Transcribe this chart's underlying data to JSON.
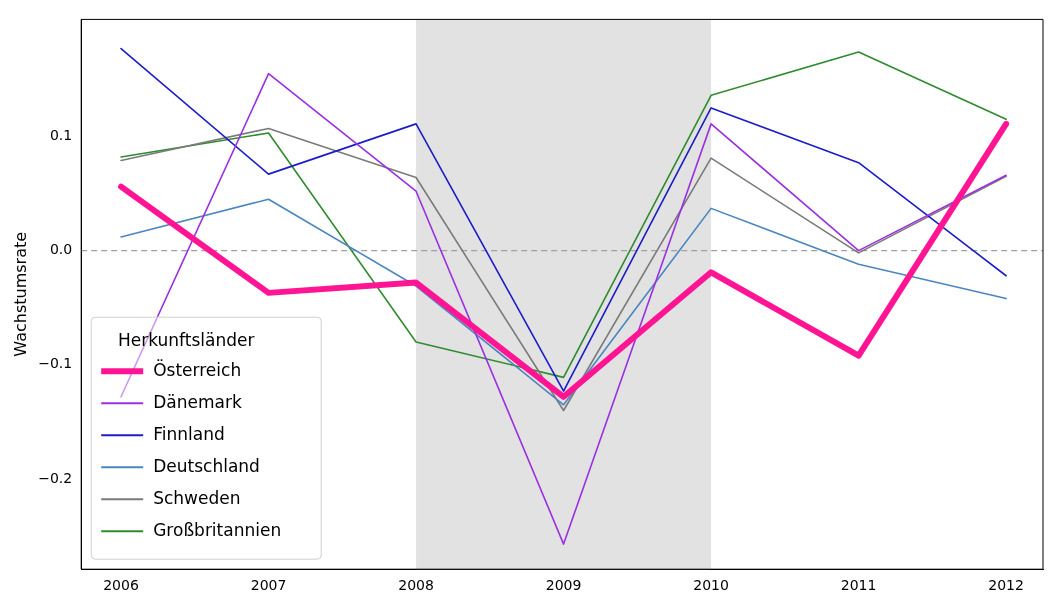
{
  "chart_data": {
    "type": "line",
    "ylabel": "Wachstumsrate",
    "legend_title": "Herkunftsländer",
    "legend": "bottom left",
    "grid": false,
    "marker": "none",
    "line_style": "solid",
    "x": [
      2006,
      2007,
      2008,
      2009,
      2010,
      2011,
      2012
    ],
    "xlim": [
      2005.73,
      2012.25
    ],
    "xticks": [
      2006,
      2007,
      2008,
      2009,
      2010,
      2011,
      2012
    ],
    "ylim": [
      -0.279,
      0.2025
    ],
    "yticks": [
      {
        "value": -0.2,
        "label": "−0.2"
      },
      {
        "value": -0.1,
        "label": "−0.1"
      },
      {
        "value": 0,
        "label": "0.0"
      },
      {
        "value": 0.1,
        "label": "0.1"
      }
    ],
    "series": [
      {
        "name": "Österreich",
        "color": "#ff1493",
        "values": [
          0.056,
          -0.037,
          -0.028,
          -0.128,
          -0.019,
          -0.092,
          0.111
        ]
      },
      {
        "name": "Dänemark",
        "color": "#9b30e0",
        "values": [
          -0.128,
          0.155,
          0.052,
          -0.257,
          0.111,
          0,
          0.066
        ]
      },
      {
        "name": "Finnland",
        "color": "#1c1cc8",
        "values": [
          0.177,
          0.067,
          0.111,
          -0.123,
          0.125,
          0.077,
          -0.022
        ]
      },
      {
        "name": "Deutschland",
        "color": "#4a86c0",
        "values": [
          0.012,
          0.045,
          -0.031,
          -0.135,
          0.037,
          -0.012,
          -0.042
        ]
      },
      {
        "name": "Schweden",
        "color": "#7a7a7a",
        "values": [
          0.079,
          0.107,
          0.064,
          -0.14,
          0.081,
          -0.002,
          0.065
        ]
      },
      {
        "name": "Großbritannien",
        "color": "#2e8b2e",
        "values": [
          0.082,
          0.103,
          -0.08,
          -0.111,
          0.136,
          0.174,
          0.115
        ]
      }
    ],
    "bands": [
      {
        "axis": "x",
        "from": 2008,
        "to": 2010,
        "color": "#e2e2e2"
      }
    ],
    "ref_lines": [
      {
        "axis": "y",
        "value": 0,
        "color": "#a0a0a0",
        "line_style": "dashed"
      }
    ]
  }
}
